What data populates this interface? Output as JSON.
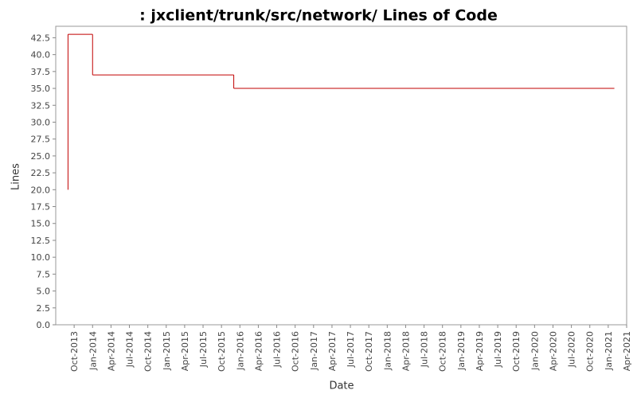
{
  "chart_data": {
    "type": "line",
    "step": "post",
    "title": ": jxclient/trunk/src/network/ Lines of Code",
    "x_label": "Date",
    "y_label": "Lines",
    "x": [
      "2013-09",
      "2013-09",
      "2014-01",
      "2015-12",
      "2021-02"
    ],
    "series": [
      {
        "name": "Lines",
        "color": "#c00000",
        "values": [
          20,
          43,
          37,
          35,
          35
        ]
      }
    ],
    "xlim": [
      "2013-07",
      "2021-04"
    ],
    "xticks": [
      {
        "value": "2013-10",
        "label": "Oct-2013"
      },
      {
        "value": "2014-01",
        "label": "Jan-2014"
      },
      {
        "value": "2014-04",
        "label": "Apr-2014"
      },
      {
        "value": "2014-07",
        "label": "Jul-2014"
      },
      {
        "value": "2014-10",
        "label": "Oct-2014"
      },
      {
        "value": "2015-01",
        "label": "Jan-2015"
      },
      {
        "value": "2015-04",
        "label": "Apr-2015"
      },
      {
        "value": "2015-07",
        "label": "Jul-2015"
      },
      {
        "value": "2015-10",
        "label": "Oct-2015"
      },
      {
        "value": "2016-01",
        "label": "Jan-2016"
      },
      {
        "value": "2016-04",
        "label": "Apr-2016"
      },
      {
        "value": "2016-07",
        "label": "Jul-2016"
      },
      {
        "value": "2016-10",
        "label": "Oct-2016"
      },
      {
        "value": "2017-01",
        "label": "Jan-2017"
      },
      {
        "value": "2017-04",
        "label": "Apr-2017"
      },
      {
        "value": "2017-07",
        "label": "Jul-2017"
      },
      {
        "value": "2017-10",
        "label": "Oct-2017"
      },
      {
        "value": "2018-01",
        "label": "Jan-2018"
      },
      {
        "value": "2018-04",
        "label": "Apr-2018"
      },
      {
        "value": "2018-07",
        "label": "Jul-2018"
      },
      {
        "value": "2018-10",
        "label": "Oct-2018"
      },
      {
        "value": "2019-01",
        "label": "Jan-2019"
      },
      {
        "value": "2019-04",
        "label": "Apr-2019"
      },
      {
        "value": "2019-07",
        "label": "Jul-2019"
      },
      {
        "value": "2019-10",
        "label": "Oct-2019"
      },
      {
        "value": "2020-01",
        "label": "Jan-2020"
      },
      {
        "value": "2020-04",
        "label": "Apr-2020"
      },
      {
        "value": "2020-07",
        "label": "Jul-2020"
      },
      {
        "value": "2020-10",
        "label": "Oct-2020"
      },
      {
        "value": "2021-01",
        "label": "Jan-2021"
      },
      {
        "value": "2021-04",
        "label": "Apr-2021"
      }
    ],
    "ylim": [
      0,
      44.2
    ],
    "yticks": [
      {
        "value": 0,
        "label": "0.0"
      },
      {
        "value": 2.5,
        "label": "2.5"
      },
      {
        "value": 5,
        "label": "5.0"
      },
      {
        "value": 7.5,
        "label": "7.5"
      },
      {
        "value": 10,
        "label": "10.0"
      },
      {
        "value": 12.5,
        "label": "12.5"
      },
      {
        "value": 15,
        "label": "15.0"
      },
      {
        "value": 17.5,
        "label": "17.5"
      },
      {
        "value": 20,
        "label": "20.0"
      },
      {
        "value": 22.5,
        "label": "22.5"
      },
      {
        "value": 25,
        "label": "25.0"
      },
      {
        "value": 27.5,
        "label": "27.5"
      },
      {
        "value": 30,
        "label": "30.0"
      },
      {
        "value": 32.5,
        "label": "32.5"
      },
      {
        "value": 35,
        "label": "35.0"
      },
      {
        "value": 37.5,
        "label": "37.5"
      },
      {
        "value": 40,
        "label": "40.0"
      },
      {
        "value": 42.5,
        "label": "42.5"
      }
    ],
    "grid": false
  }
}
